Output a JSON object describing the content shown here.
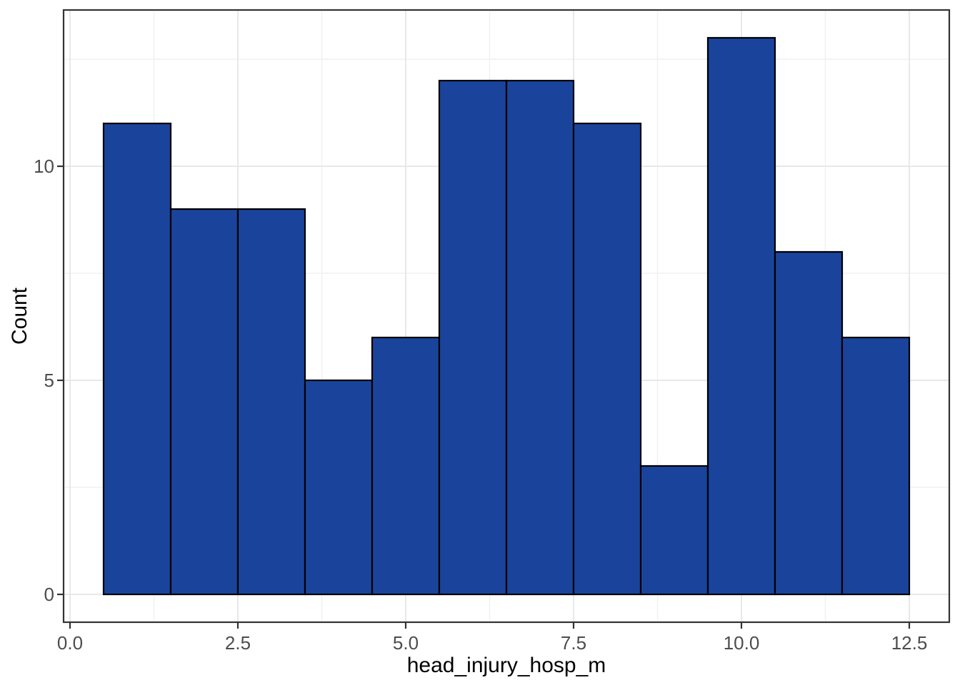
{
  "chart_data": {
    "type": "bar",
    "subtype": "histogram",
    "title": "",
    "xlabel": "head_injury_hosp_m",
    "ylabel": "Count",
    "bin_width": 1,
    "bin_edges": [
      0.5,
      1.5,
      2.5,
      3.5,
      4.5,
      5.5,
      6.5,
      7.5,
      8.5,
      9.5,
      10.5,
      11.5,
      12.5
    ],
    "counts": [
      11,
      9,
      9,
      5,
      6,
      12,
      12,
      11,
      3,
      13,
      8,
      6
    ],
    "x_ticks": [
      0.0,
      2.5,
      5.0,
      7.5,
      10.0,
      12.5
    ],
    "x_tick_labels": [
      "0.0",
      "2.5",
      "5.0",
      "7.5",
      "10.0",
      "12.5"
    ],
    "x_minor_ticks": [
      1.25,
      3.75,
      6.25,
      8.75,
      11.25
    ],
    "y_ticks": [
      0,
      5,
      10
    ],
    "y_tick_labels": [
      "0",
      "5",
      "10"
    ],
    "y_minor_ticks": [
      2.5,
      7.5,
      12.5
    ],
    "xlim": [
      -0.1,
      13.1
    ],
    "ylim": [
      -0.65,
      13.65
    ],
    "grid": "major-and-minor",
    "legend_position": "none",
    "colors": {
      "bar_fill": "#1A449C",
      "bar_stroke": "#000000",
      "panel_border": "#333333",
      "tick_mark": "#333333",
      "grid_major": "#E8E8E8",
      "grid_minor": "#F1F1F1",
      "tick_label": "#4D4D4D",
      "axis_title": "#000000",
      "panel_background": "#FFFFFF",
      "figure_background": "#FFFFFF"
    }
  }
}
